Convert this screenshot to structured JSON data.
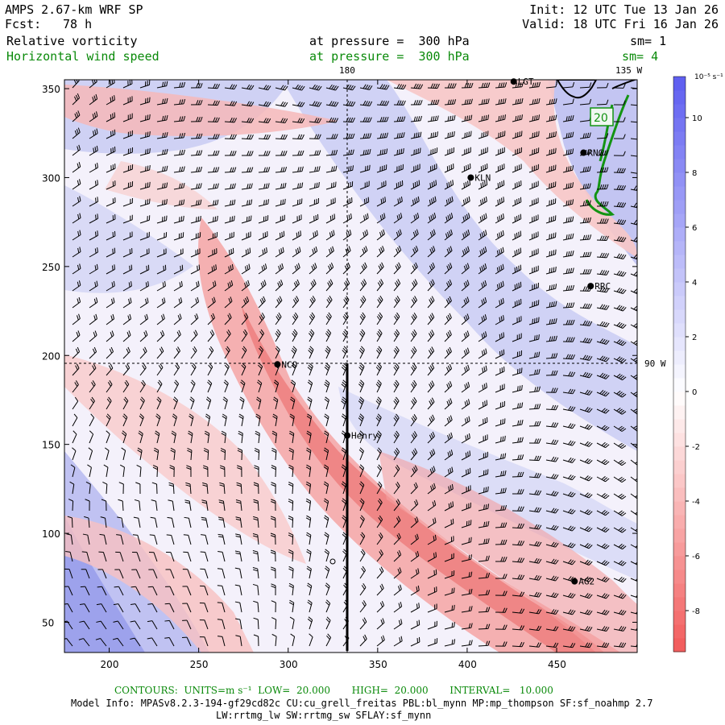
{
  "header": {
    "model": "AMPS 2.67-km WRF SP",
    "fcst_label": "Fcst:",
    "fcst_value": "78 h",
    "init": "Init: 12 UTC Tue 13 Jan 26",
    "valid": "Valid: 18 UTC Fri 16 Jan 26",
    "field1": "Relative vorticity",
    "field1_level": "at pressure =  300 hPa",
    "field1_sm": "sm= 1",
    "field2": "Horizontal wind speed",
    "field2_level": "at pressure =  300 hPa",
    "field2_sm": "sm= 4"
  },
  "axes": {
    "x_ticks": [
      "200",
      "250",
      "300",
      "350",
      "400",
      "450"
    ],
    "y_ticks": [
      "350",
      "300",
      "250",
      "200",
      "150",
      "100",
      "50"
    ],
    "x_values": [
      200,
      250,
      300,
      350,
      400,
      450
    ],
    "y_values": [
      350,
      300,
      250,
      200,
      150,
      100,
      50
    ],
    "x_range": [
      175,
      495
    ],
    "y_range": [
      33,
      355
    ],
    "meridian_180": "180",
    "meridian_135w": "135 W",
    "parallel_90w": "90 W"
  },
  "colorbar": {
    "unit": "10⁻⁵ s⁻¹",
    "ticks": [
      "10",
      "8",
      "6",
      "4",
      "2",
      "0",
      "-2",
      "-4",
      "-6",
      "-8"
    ],
    "values": [
      10,
      8,
      6,
      4,
      2,
      0,
      -2,
      -4,
      -6,
      -8
    ],
    "min": -9.5,
    "max": 11.5,
    "neg_color": "#f25a5a",
    "pos_color": "#5c5cf0"
  },
  "stations": [
    {
      "name": "LGT",
      "x": 426,
      "y": 354
    },
    {
      "name": "RNG",
      "x": 465,
      "y": 314
    },
    {
      "name": "KLN",
      "x": 402,
      "y": 300
    },
    {
      "name": "RRC",
      "x": 469,
      "y": 239
    },
    {
      "name": "NCO",
      "x": 294,
      "y": 195
    },
    {
      "name": "Henry",
      "x": 333,
      "y": 155
    },
    {
      "name": "AG2",
      "x": 460,
      "y": 73
    }
  ],
  "contour_label": "20",
  "footer": {
    "contours": "CONTOURS:  UNITS=m s⁻¹  LOW=  20.000       HIGH=  20.000       INTERVAL=   10.000",
    "model_info": "Model Info: MPASv8.2.3-194-gf29cd82c CU:cu_grell_freitas PBL:bl_mynn MP:mp_thompson SF:sf_noahmp 2.7",
    "model_info2": "LW:rrtmg_lw SW:rrtmg_sw SFLAY:sf_mynn"
  }
}
